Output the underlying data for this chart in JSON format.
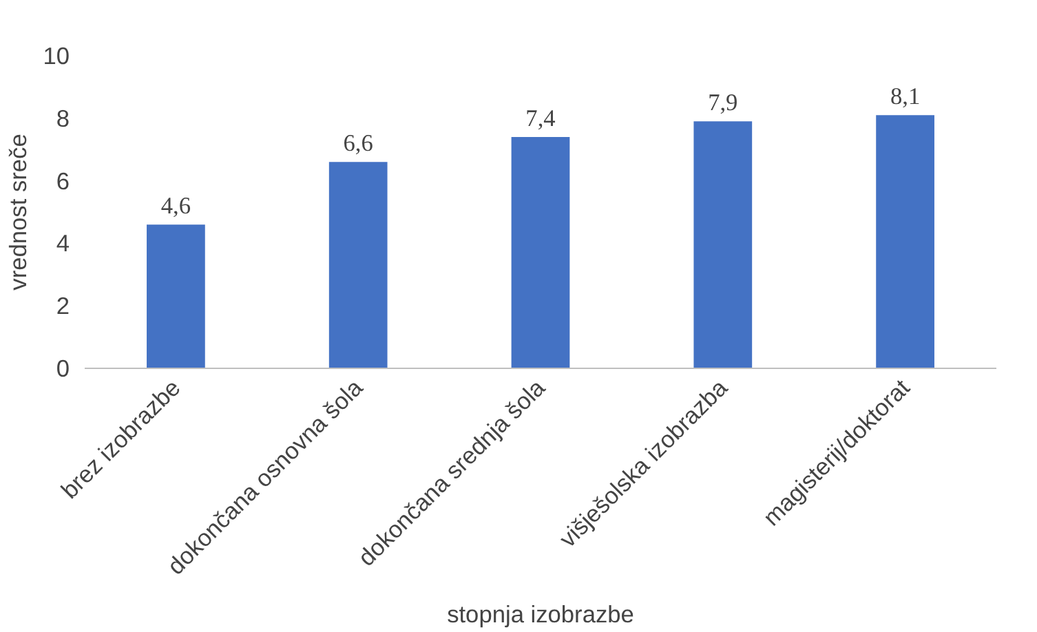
{
  "chart_data": {
    "type": "bar",
    "xlabel": "stopnja izobrazbe",
    "ylabel": "vrednost sreče",
    "categories": [
      "brez izobrazbe",
      "dokončana osnovna šola",
      "dokončana srednja šola",
      "višješolska izobrazba",
      "magisterij/doktorat"
    ],
    "values": [
      4.6,
      6.6,
      7.4,
      7.9,
      8.1
    ],
    "value_labels": [
      "4,6",
      "6,6",
      "7,4",
      "7,9",
      "8,1"
    ],
    "color": "#4472c4",
    "ylim": [
      0,
      10
    ],
    "yticks": [
      0,
      2,
      4,
      6,
      8,
      10
    ],
    "grid": false
  }
}
